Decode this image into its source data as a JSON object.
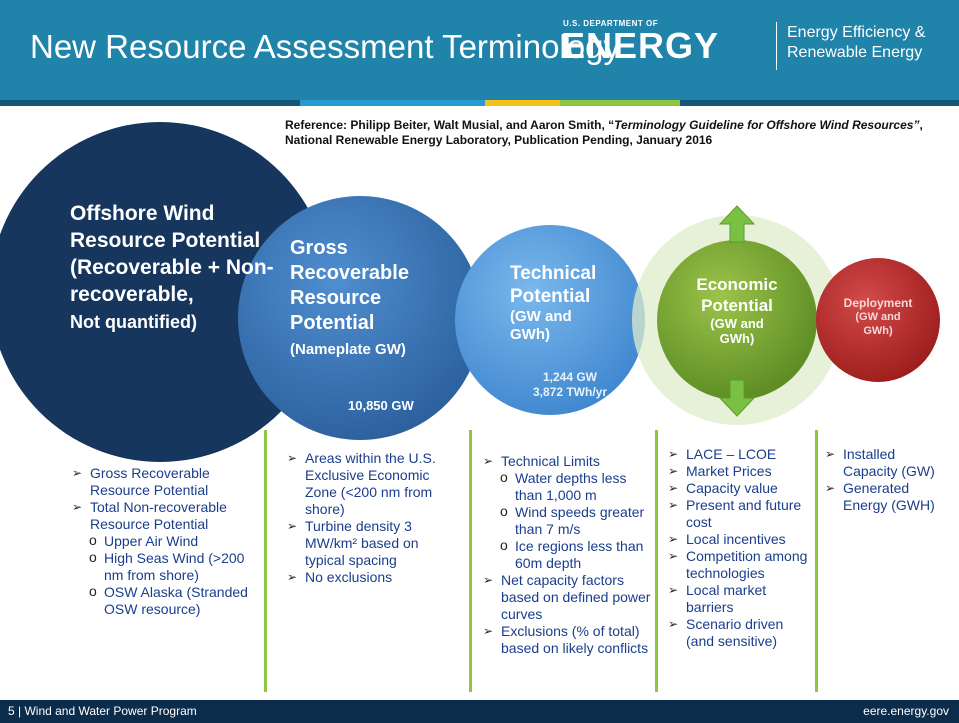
{
  "header": {
    "title": "New Resource Assessment Terminology",
    "doe_small": "U.S. DEPARTMENT OF",
    "doe_big": "ENERGY",
    "office": "Energy Efficiency & Renewable Energy"
  },
  "reference": {
    "prefix": "Reference: Philipp Beiter, Walt Musial, and Aaron Smith,  “",
    "title": "Terminology Guideline for Offshore Wind Resources”",
    "suffix": ", National Renewable Energy Laboratory, Publication Pending, January 2016"
  },
  "circles": [
    {
      "heading": "Offshore Wind Resource Potential (Recoverable + Non-recoverable,",
      "sub": "Not quantified)"
    },
    {
      "heading": "Gross Recoverable Resource Potential",
      "sub": "(Nameplate GW)",
      "value": "10,850 GW"
    },
    {
      "heading": "Technical Potential",
      "sub": "(GW and GWh)",
      "value": "1,244 GW",
      "value2": "3,872 TWh/yr"
    },
    {
      "heading": "Economic Potential",
      "sub": "(GW and GWh)"
    },
    {
      "heading": "Deployment",
      "sub": "(GW and GWh)"
    }
  ],
  "columns": [
    {
      "items": [
        {
          "text": "Gross Recoverable Resource Potential"
        },
        {
          "text": "Total Non-recoverable Resource Potential",
          "subs": [
            "Upper Air Wind",
            "High Seas Wind (>200 nm from shore)",
            "OSW Alaska (Stranded OSW resource)"
          ]
        }
      ]
    },
    {
      "items": [
        {
          "text": "Areas within the U.S. Exclusive Economic Zone (<200 nm from shore)"
        },
        {
          "text": "Turbine density 3 MW/km² based on typical  spacing"
        },
        {
          "text": "No exclusions"
        }
      ]
    },
    {
      "items": [
        {
          "text": "Technical Limits",
          "subs": [
            "Water depths less than 1,000 m",
            "Wind speeds greater than 7 m/s",
            "Ice regions less than 60m depth"
          ]
        },
        {
          "text": "Net capacity factors based on defined power curves"
        },
        {
          "text": "Exclusions  (% of total) based on likely conflicts"
        }
      ]
    },
    {
      "items": [
        {
          "text": "LACE – LCOE"
        },
        {
          "text": "Market Prices"
        },
        {
          "text": "Capacity value"
        },
        {
          "text": "Present and future cost"
        },
        {
          "text": "Local incentives"
        },
        {
          "text": "Competition among technologies"
        },
        {
          "text": "Local market barriers"
        },
        {
          "text": "Scenario driven (and sensitive)"
        }
      ]
    },
    {
      "items": [
        {
          "text": "Installed Capacity (GW)"
        },
        {
          "text": "Generated Energy (GWH)"
        }
      ]
    }
  ],
  "footer": {
    "left": "5 | Wind and Water Power Program",
    "right": "eere.energy.gov"
  }
}
